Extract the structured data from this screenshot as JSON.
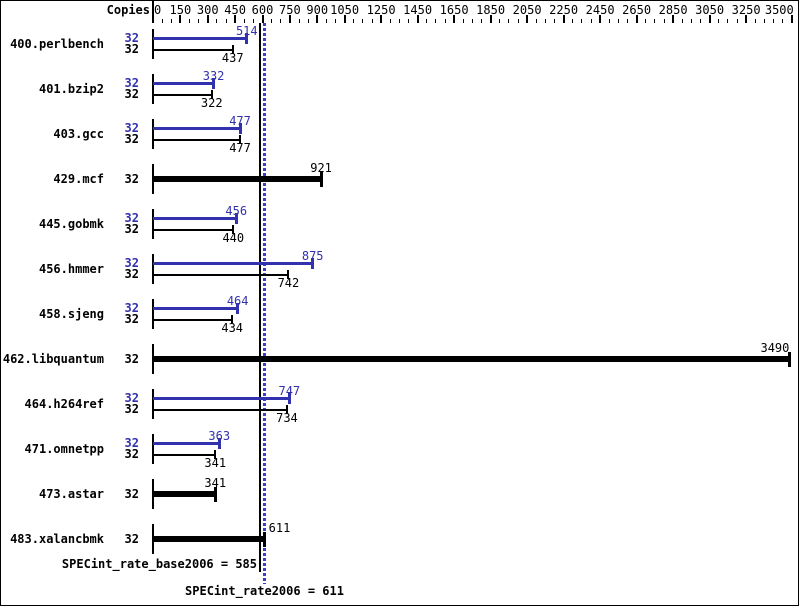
{
  "header": {
    "copies_label": "Copies"
  },
  "colors": {
    "peak_blue": "#3232ae",
    "base_black": "#000000",
    "dotted_blue": "#3d3dc8",
    "background": "#ffffff"
  },
  "footer": {
    "base_metric_label": "SPECint_rate_base2006 = 585",
    "base_metric_value": 585,
    "peak_metric_label": "SPECint_rate2006 = 611",
    "peak_metric_value": 611
  },
  "chart_data": {
    "type": "bar",
    "orientation": "horizontal",
    "xlim": [
      0,
      3500
    ],
    "x_major_ticks": [
      0,
      150,
      300,
      450,
      600,
      750,
      900,
      1050,
      1250,
      1450,
      1650,
      1850,
      2050,
      2250,
      2450,
      2650,
      2850,
      3050,
      3250,
      3500
    ],
    "x_minor_tick_step": 50,
    "grid": false,
    "legend": "none",
    "copies_column_header": "Copies",
    "categories": [
      "400.perlbench",
      "401.bzip2",
      "403.gcc",
      "429.mcf",
      "445.gobmk",
      "456.hmmer",
      "458.sjeng",
      "462.libquantum",
      "464.h264ref",
      "471.omnetpp",
      "473.astar",
      "483.xalancbmk"
    ],
    "series": [
      {
        "name": "peak",
        "metric": "SPECint_rate2006",
        "values": [
          514,
          332,
          477,
          null,
          456,
          875,
          464,
          null,
          747,
          363,
          null,
          null
        ]
      },
      {
        "name": "base",
        "metric": "SPECint_rate_base2006",
        "values": [
          437,
          322,
          477,
          921,
          440,
          742,
          434,
          3490,
          734,
          341,
          341,
          611
        ]
      }
    ],
    "groups": [
      {
        "name": "400.perlbench",
        "bars": [
          {
            "series": "peak",
            "copies": 32,
            "value": 514
          },
          {
            "series": "base",
            "copies": 32,
            "value": 437
          }
        ]
      },
      {
        "name": "401.bzip2",
        "bars": [
          {
            "series": "peak",
            "copies": 32,
            "value": 332
          },
          {
            "series": "base",
            "copies": 32,
            "value": 322
          }
        ]
      },
      {
        "name": "403.gcc",
        "bars": [
          {
            "series": "peak",
            "copies": 32,
            "value": 477
          },
          {
            "series": "base",
            "copies": 32,
            "value": 477
          }
        ]
      },
      {
        "name": "429.mcf",
        "bars": [
          {
            "series": "both",
            "copies": 32,
            "value": 921
          }
        ]
      },
      {
        "name": "445.gobmk",
        "bars": [
          {
            "series": "peak",
            "copies": 32,
            "value": 456
          },
          {
            "series": "base",
            "copies": 32,
            "value": 440
          }
        ]
      },
      {
        "name": "456.hmmer",
        "bars": [
          {
            "series": "peak",
            "copies": 32,
            "value": 875
          },
          {
            "series": "base",
            "copies": 32,
            "value": 742
          }
        ]
      },
      {
        "name": "458.sjeng",
        "bars": [
          {
            "series": "peak",
            "copies": 32,
            "value": 464
          },
          {
            "series": "base",
            "copies": 32,
            "value": 434
          }
        ]
      },
      {
        "name": "462.libquantum",
        "bars": [
          {
            "series": "both",
            "copies": 32,
            "value": 3490,
            "label_dx": -15
          }
        ]
      },
      {
        "name": "464.h264ref",
        "bars": [
          {
            "series": "peak",
            "copies": 32,
            "value": 747
          },
          {
            "series": "base",
            "copies": 32,
            "value": 734
          }
        ]
      },
      {
        "name": "471.omnetpp",
        "bars": [
          {
            "series": "peak",
            "copies": 32,
            "value": 363
          },
          {
            "series": "base",
            "copies": 32,
            "value": 341
          }
        ]
      },
      {
        "name": "473.astar",
        "bars": [
          {
            "series": "both",
            "copies": 32,
            "value": 341
          }
        ]
      },
      {
        "name": "483.xalancbmk",
        "bars": [
          {
            "series": "both",
            "copies": 32,
            "value": 611,
            "label_dx": 15
          }
        ]
      }
    ],
    "reference_lines": [
      {
        "metric": "SPECint_rate_base2006",
        "value": 585,
        "style": "solid",
        "series": "base"
      },
      {
        "metric": "SPECint_rate2006",
        "value": 611,
        "style": "dotted",
        "series": "peak"
      }
    ]
  }
}
